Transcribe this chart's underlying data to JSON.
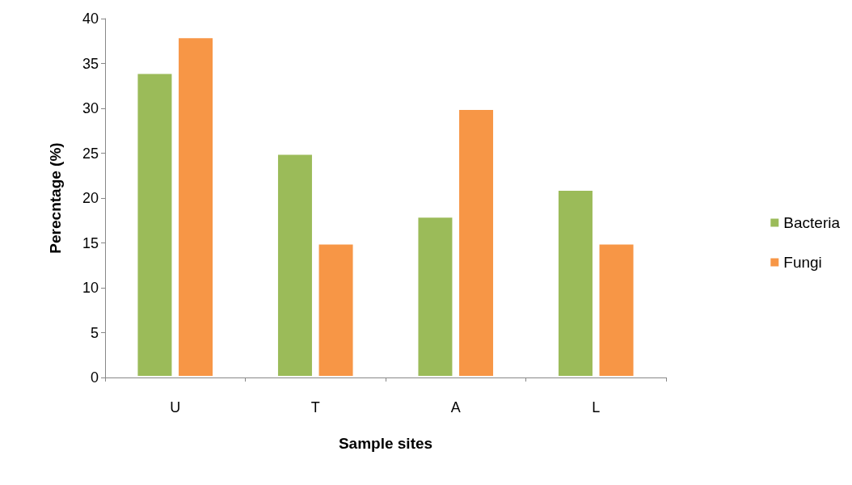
{
  "chart_data": {
    "type": "bar",
    "xlabel": "Sample sites",
    "ylabel": "Perecntage (%)",
    "categories": [
      "U",
      "T",
      "A",
      "L"
    ],
    "series": [
      {
        "name": "Bacteria",
        "color": "#9bbb59",
        "values": [
          34,
          25,
          18,
          21
        ]
      },
      {
        "name": "Fungi",
        "color": "#f79646",
        "values": [
          38,
          15,
          30,
          15
        ]
      }
    ],
    "ylim": [
      0,
      40
    ],
    "yticks": [
      0,
      5,
      10,
      15,
      20,
      25,
      30,
      35,
      40
    ],
    "grid": false,
    "legend": "right"
  }
}
